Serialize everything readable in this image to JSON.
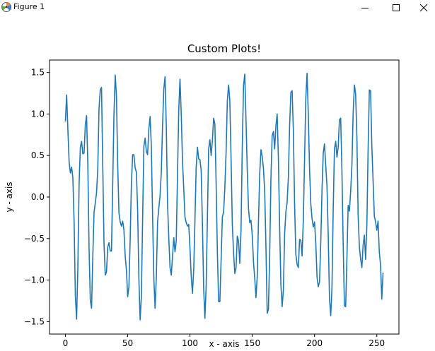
{
  "window": {
    "title": "Figure 1",
    "icons": {
      "app": "matplotlib-icon",
      "minimize": "minimize-icon",
      "maximize": "maximize-icon",
      "close": "close-icon"
    }
  },
  "colors": {
    "line": "#1f77b4",
    "axes": "#000000",
    "background": "#ffffff"
  },
  "chart_data": {
    "type": "line",
    "title": "Custom Plots!",
    "xlabel": "x - axis",
    "ylabel": "y - axis",
    "xlim": [
      -12.75,
      267.75
    ],
    "ylim": [
      -1.65,
      1.65
    ],
    "xticks": [
      0,
      50,
      100,
      150,
      200,
      250
    ],
    "yticks": [
      -1.5,
      -1.0,
      -0.5,
      0.0,
      0.5,
      1.0,
      1.5
    ],
    "xtick_labels": [
      "0",
      "50",
      "100",
      "150",
      "200",
      "250"
    ],
    "ytick_labels": [
      "−1.5",
      "−1.0",
      "−0.5",
      "0.0",
      "0.5",
      "1.0",
      "1.5"
    ],
    "grid": false,
    "legend": null,
    "series": [
      {
        "color": "#1f77b4",
        "x": [
          0,
          1,
          2,
          3,
          4,
          5,
          6,
          7,
          8,
          9,
          10,
          11,
          12,
          13,
          14,
          15,
          16,
          17,
          18,
          19,
          20,
          21,
          22,
          23,
          24,
          25,
          26,
          27,
          28,
          29,
          30,
          31,
          32,
          33,
          34,
          35,
          36,
          37,
          38,
          39,
          40,
          41,
          42,
          43,
          44,
          45,
          46,
          47,
          48,
          49,
          50,
          51,
          52,
          53,
          54,
          55,
          56,
          57,
          58,
          59,
          60,
          61,
          62,
          63,
          64,
          65,
          66,
          67,
          68,
          69,
          70,
          71,
          72,
          73,
          74,
          75,
          76,
          77,
          78,
          79,
          80,
          81,
          82,
          83,
          84,
          85,
          86,
          87,
          88,
          89,
          90,
          91,
          92,
          93,
          94,
          95,
          96,
          97,
          98,
          99,
          100,
          101,
          102,
          103,
          104,
          105,
          106,
          107,
          108,
          109,
          110,
          111,
          112,
          113,
          114,
          115,
          116,
          117,
          118,
          119,
          120,
          121,
          122,
          123,
          124,
          125,
          126,
          127,
          128,
          129,
          130,
          131,
          132,
          133,
          134,
          135,
          136,
          137,
          138,
          139,
          140,
          141,
          142,
          143,
          144,
          145,
          146,
          147,
          148,
          149,
          150,
          151,
          152,
          153,
          154,
          155,
          156,
          157,
          158,
          159,
          160,
          161,
          162,
          163,
          164,
          165,
          166,
          167,
          168,
          169,
          170,
          171,
          172,
          173,
          174,
          175,
          176,
          177,
          178,
          179,
          180,
          181,
          182,
          183,
          184,
          185,
          186,
          187,
          188,
          189,
          190,
          191,
          192,
          193,
          194,
          195,
          196,
          197,
          198,
          199,
          200,
          201,
          202,
          203,
          204,
          205,
          206,
          207,
          208,
          209,
          210,
          211,
          212,
          213,
          214,
          215,
          216,
          217,
          218,
          219,
          220,
          221,
          222,
          223,
          224,
          225,
          226,
          227,
          228,
          229,
          230,
          231,
          232,
          233,
          234,
          235,
          236,
          237,
          238,
          239,
          240,
          241,
          242,
          243,
          244,
          245,
          246,
          247,
          248,
          249,
          250,
          251,
          252,
          253,
          254,
          255
        ],
        "y": [
          0.91,
          1.23,
          0.81,
          0.42,
          0.29,
          0.36,
          0.23,
          -0.3,
          -1.2,
          -1.47,
          -0.85,
          0.16,
          0.6,
          0.67,
          0.52,
          0.53,
          0.87,
          0.98,
          0.4,
          -0.62,
          -1.24,
          -1.34,
          -0.72,
          -0.19,
          -0.07,
          0.05,
          0.34,
          1.07,
          1.29,
          1.32,
          0.37,
          -0.56,
          -0.94,
          -0.9,
          -0.6,
          -0.55,
          -0.65,
          -0.65,
          0.17,
          1.0,
          1.47,
          1.21,
          0.39,
          -0.19,
          -0.3,
          -0.35,
          -0.29,
          -0.4,
          -0.71,
          -0.88,
          -1.2,
          -1.08,
          -0.51,
          0.17,
          0.51,
          0.51,
          0.35,
          0.3,
          -0.16,
          -0.99,
          -1.48,
          -1.2,
          -0.26,
          0.61,
          0.71,
          0.55,
          0.51,
          0.82,
          0.97,
          0.61,
          -0.23,
          -0.98,
          -1.34,
          -0.96,
          -0.3,
          -0.13,
          0.02,
          0.3,
          0.86,
          1.3,
          1.45,
          0.85,
          -0.08,
          -0.49,
          -0.85,
          -0.94,
          -0.72,
          -0.49,
          -0.66,
          -0.53,
          0.27,
          1.05,
          1.42,
          1.0,
          0.44,
          0.1,
          -0.24,
          -0.31,
          -0.35,
          -0.33,
          -0.61,
          -0.95,
          -1.16,
          -0.88,
          -0.28,
          0.36,
          0.6,
          0.46,
          0.45,
          0.32,
          -0.32,
          -1.1,
          -1.46,
          -1.08,
          -0.26,
          0.58,
          0.69,
          0.5,
          0.68,
          0.95,
          0.88,
          0.17,
          -0.66,
          -1.26,
          -1.26,
          -0.76,
          -0.24,
          -0.18,
          0.11,
          0.54,
          1.16,
          1.35,
          1.16,
          0.46,
          -0.33,
          -0.67,
          -0.92,
          -0.85,
          -0.47,
          -0.53,
          -0.8,
          -0.39,
          0.61,
          1.34,
          1.48,
          0.92,
          0.33,
          -0.14,
          -0.31,
          -0.28,
          -0.46,
          -0.78,
          -0.98,
          -1.21,
          -0.96,
          -0.29,
          0.28,
          0.57,
          0.49,
          0.34,
          0.07,
          -0.6,
          -1.4,
          -1.35,
          -0.7,
          0.22,
          0.74,
          0.79,
          0.58,
          0.86,
          1.0,
          0.46,
          -0.37,
          -1.05,
          -1.32,
          -1.12,
          -0.44,
          -0.18,
          -0.06,
          0.24,
          0.86,
          1.26,
          1.28,
          0.81,
          -0.09,
          -0.69,
          -0.81,
          -0.85,
          -0.51,
          -0.52,
          -0.71,
          -0.28,
          0.45,
          1.19,
          1.49,
          0.99,
          0.34,
          -0.08,
          -0.26,
          -0.36,
          -0.3,
          -0.55,
          -0.96,
          -1.08,
          -1.02,
          -0.55,
          0.08,
          0.53,
          0.64,
          0.38,
          0.13,
          -0.47,
          -1.22,
          -1.43,
          -1.09,
          -0.14,
          0.58,
          0.67,
          0.48,
          0.6,
          0.93,
          0.95,
          0.31,
          -0.57,
          -1.31,
          -1.32,
          -0.74,
          -0.1,
          -0.17,
          0.07,
          0.38,
          1.01,
          1.35,
          1.24,
          0.73,
          -0.22,
          -0.6,
          -0.75,
          -0.85,
          -0.58,
          -0.46,
          -0.75,
          -0.35,
          0.56,
          1.29,
          1.28,
          0.61,
          0.2,
          -0.23,
          -0.3,
          -0.4,
          -0.29,
          -0.66,
          -0.82,
          -1.23,
          -0.91
        ]
      }
    ]
  }
}
